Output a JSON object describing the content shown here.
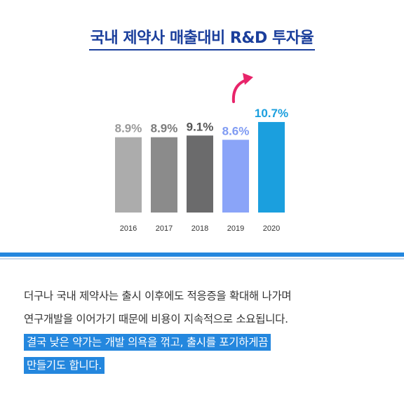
{
  "header": {
    "title": "국내 제약사 매출대비 R&D 투자율"
  },
  "chart_data": {
    "type": "bar",
    "title": "국내 제약사 매출대비 R&D 투자율",
    "categories": [
      "2016",
      "2017",
      "2018",
      "2019",
      "2020"
    ],
    "values": [
      8.9,
      8.9,
      9.1,
      8.6,
      10.7
    ],
    "labels": [
      "8.9%",
      "8.9%",
      "9.1%",
      "8.6%",
      "10.7%"
    ],
    "unit": "%",
    "colors": [
      "#acacac",
      "#8b8b8b",
      "#6b6b6c",
      "#8aa4f8",
      "#1b9fde"
    ],
    "label_colors": [
      "#9a9a9a",
      "#7c7c7c",
      "#555555",
      "#7f9bf3",
      "#1b9fde"
    ],
    "arrow_color": "#e8246a",
    "xlabel": "",
    "ylabel": "",
    "grid": false,
    "legend": "none"
  },
  "body": {
    "lines": [
      "더구나 국내 제약사는 출시 이후에도 적응증을 확대해 나가며",
      "연구개발을 이어가기 때문에 비용이 지속적으로 소요됩니다."
    ],
    "highlight_lines": [
      "결국 낮은 약가는 개발 의욕을 꺾고, 출시를 포기하게끔",
      "만들기도 합니다."
    ],
    "highlight_color": "#2487de"
  }
}
